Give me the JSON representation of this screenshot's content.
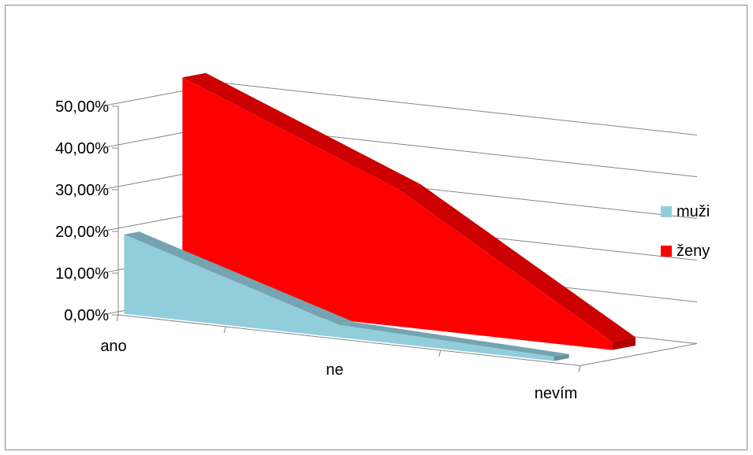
{
  "chart_data": {
    "type": "area",
    "title": "",
    "xlabel": "",
    "ylabel": "",
    "categories": [
      "ano",
      "ne",
      "nevím"
    ],
    "ylim": [
      0,
      0.5
    ],
    "y_ticks": [
      "0,00%",
      "10,00%",
      "20,00%",
      "30,00%",
      "40,00%",
      "50,00%"
    ],
    "series": [
      {
        "name": "muži",
        "values": [
          0.19,
          0.03,
          0.01
        ],
        "color": "#92cddc"
      },
      {
        "name": "ženy",
        "values": [
          0.54,
          0.33,
          0.02
        ],
        "color": "#ff0000"
      }
    ],
    "grid": true,
    "legend_position": "right",
    "three_d": true
  }
}
